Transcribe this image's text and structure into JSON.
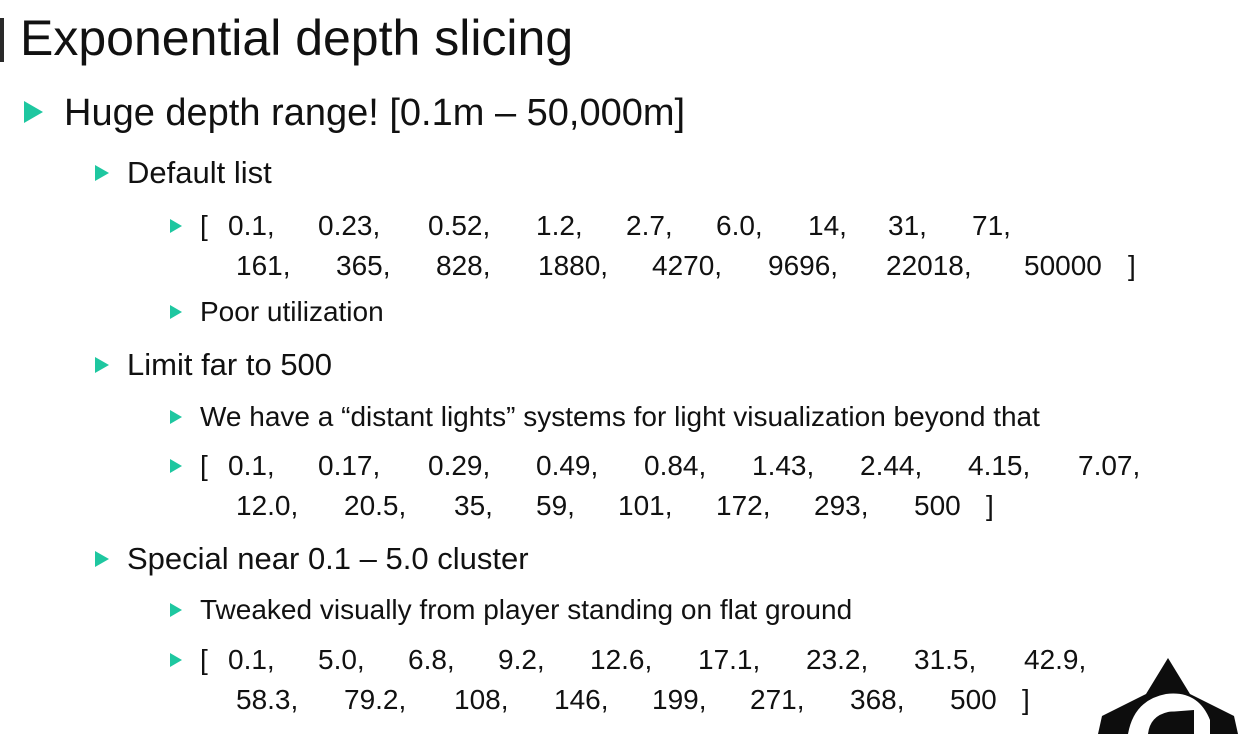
{
  "slide": {
    "title": "Exponential depth slicing",
    "main_bullet": "Huge depth range! [0.1m – 50,000m]",
    "sections": [
      {
        "heading": "Default list",
        "items": [
          {
            "kind": "list",
            "open": "[",
            "close": "]",
            "line1": [
              "0.1,",
              "0.23,",
              "0.52,",
              "1.2,",
              "2.7,",
              "6.0,",
              "14,",
              "31,",
              "71,"
            ],
            "line2": [
              "161,",
              "365,",
              "828,",
              "1880,",
              "4270,",
              "9696,",
              "22018,",
              "50000"
            ]
          },
          {
            "kind": "text",
            "text": "Poor utilization"
          }
        ]
      },
      {
        "heading": "Limit far to 500",
        "items": [
          {
            "kind": "text",
            "text": "We have a “distant lights” systems for light visualization beyond that"
          },
          {
            "kind": "list",
            "open": "[",
            "close": "]",
            "line1": [
              "0.1,",
              "0.17,",
              "0.29,",
              "0.49,",
              "0.84,",
              "1.43,",
              "2.44,",
              "4.15,",
              "7.07,"
            ],
            "line2": [
              "12.0,",
              "20.5,",
              "35,",
              "59,",
              "101,",
              "172,",
              "293,",
              "500"
            ]
          }
        ]
      },
      {
        "heading": "Special near 0.1 – 5.0 cluster",
        "items": [
          {
            "kind": "text",
            "text": "Tweaked visually from player standing on flat ground"
          },
          {
            "kind": "list",
            "open": "[",
            "close": "]",
            "line1": [
              "0.1,",
              "5.0,",
              "6.8,",
              "9.2,",
              "12.6,",
              "17.1,",
              "23.2,",
              "31.5,",
              "42.9,"
            ],
            "line2": [
              "58.3,",
              "79.2,",
              "108,",
              "146,",
              "199,",
              "271,",
              "368,",
              "500"
            ]
          }
        ]
      }
    ],
    "colors": {
      "bullet": "#1ec7a0",
      "text": "#111111",
      "background": "#ffffff"
    },
    "logo_icon": "studio-logo-icon"
  }
}
